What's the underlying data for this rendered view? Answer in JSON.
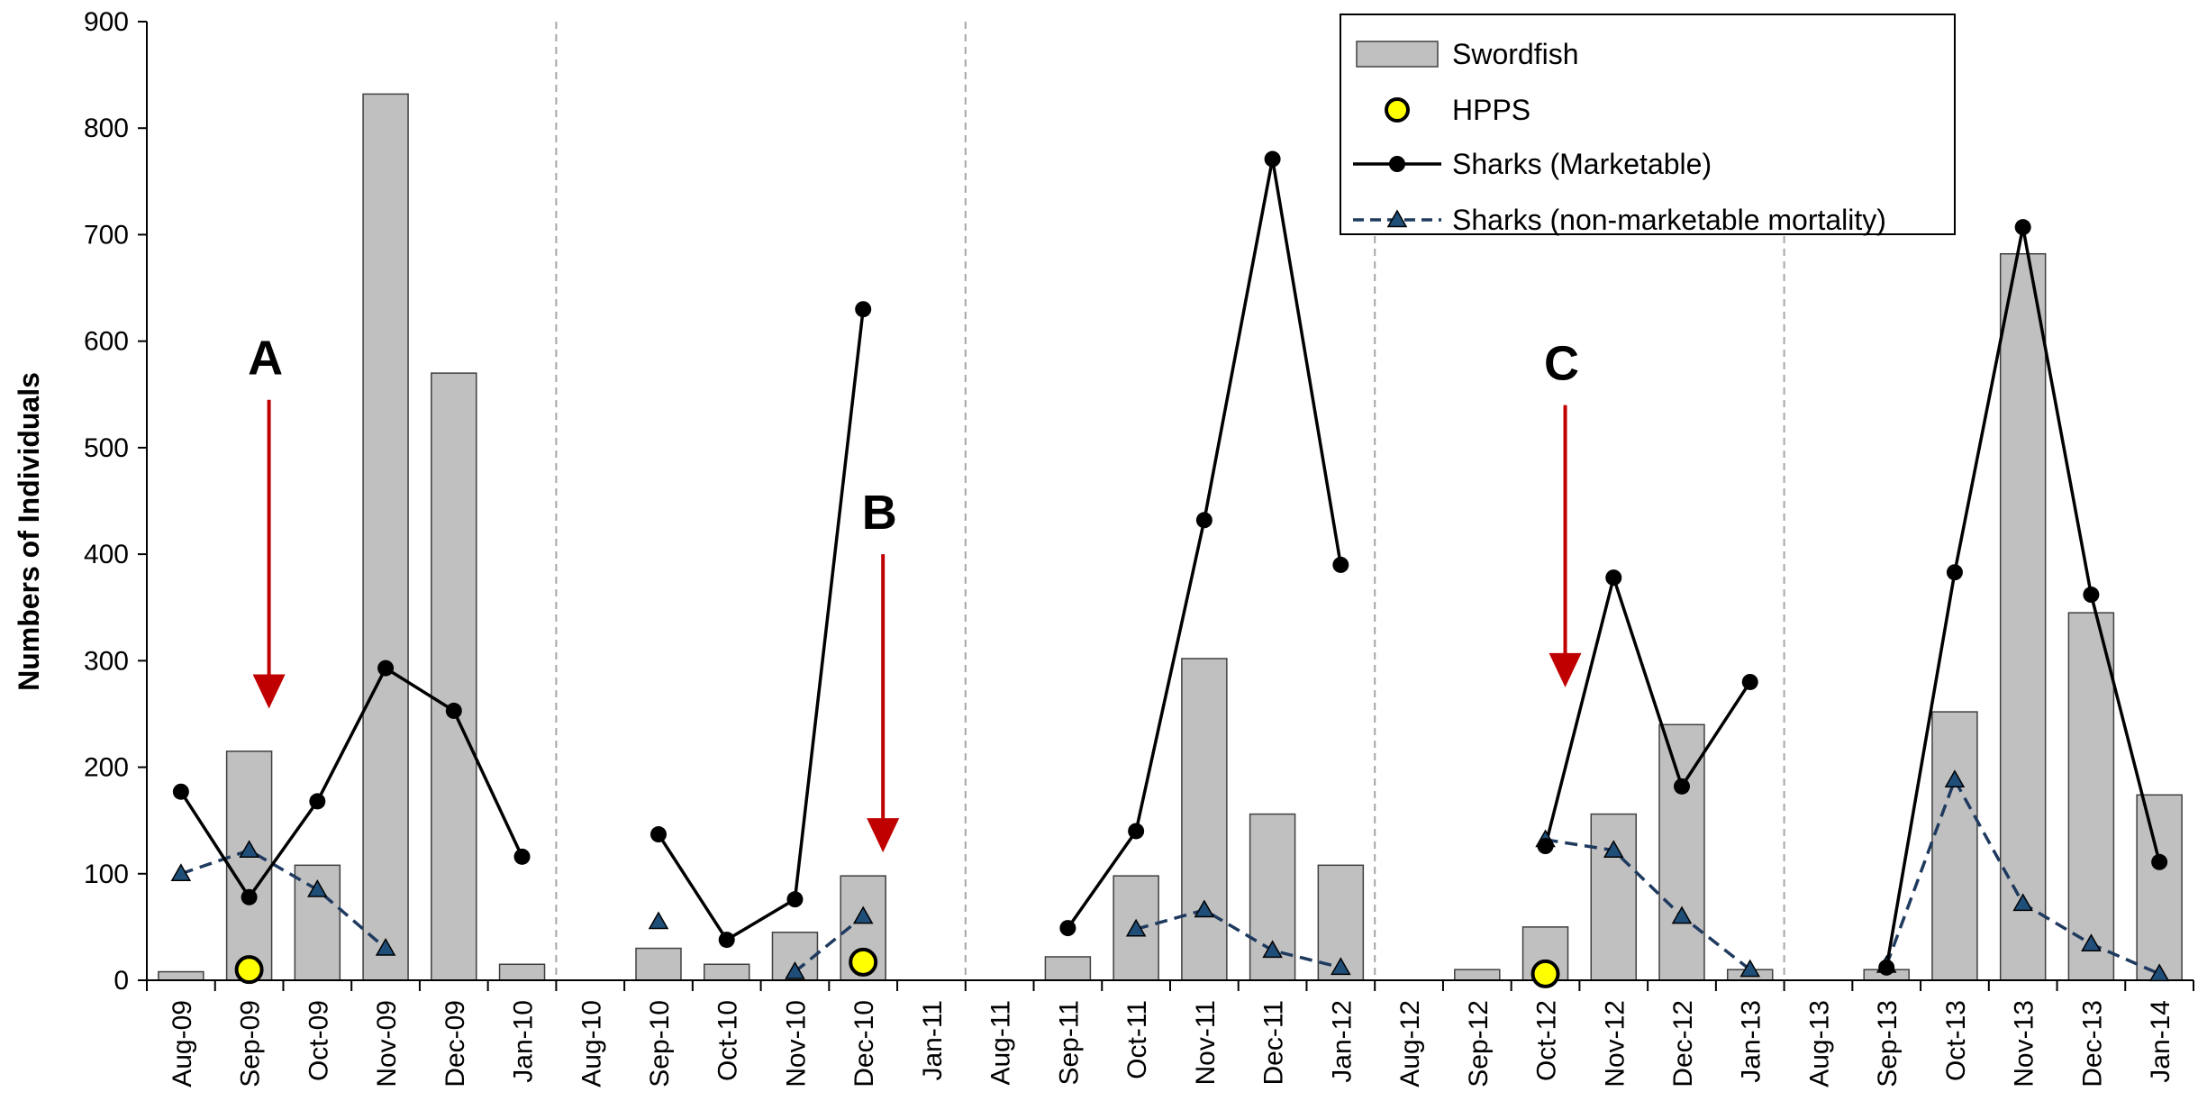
{
  "chart_data": {
    "type": "bar",
    "title": "",
    "xlabel": "",
    "ylabel": "Numbers of Individuals",
    "ylim": [
      0,
      900
    ],
    "yticks": [
      0,
      100,
      200,
      300,
      400,
      500,
      600,
      700,
      800,
      900
    ],
    "grid": false,
    "legend_position": "top-right",
    "categories": [
      "Aug-09",
      "Sep-09",
      "Oct-09",
      "Nov-09",
      "Dec-09",
      "Jan-10",
      "Aug-10",
      "Sep-10",
      "Oct-10",
      "Nov-10",
      "Dec-10",
      "Jan-11",
      "Aug-11",
      "Sep-11",
      "Oct-11",
      "Nov-11",
      "Dec-11",
      "Jan-12",
      "Aug-12",
      "Sep-12",
      "Oct-12",
      "Nov-12",
      "Dec-12",
      "Jan-13",
      "Aug-13",
      "Sep-13",
      "Oct-13",
      "Nov-13",
      "Dec-13",
      "Jan-14"
    ],
    "season_separators_after": [
      "Jan-10",
      "Jan-11",
      "Jan-12",
      "Jan-13"
    ],
    "series": [
      {
        "name": "Swordfish",
        "kind": "bar",
        "color": "#c0c0c0",
        "values": [
          8,
          215,
          108,
          832,
          570,
          15,
          null,
          30,
          15,
          45,
          98,
          null,
          null,
          22,
          98,
          302,
          156,
          108,
          null,
          10,
          50,
          156,
          240,
          10,
          null,
          10,
          252,
          682,
          345,
          174
        ]
      },
      {
        "name": "HPPS",
        "kind": "circle",
        "color": "#ffff00",
        "points": [
          {
            "x": "Sep-09",
            "y": 10
          },
          {
            "x": "Dec-10",
            "y": 17
          },
          {
            "x": "Oct-12",
            "y": 6
          }
        ]
      },
      {
        "name": "Sharks (Marketable)",
        "kind": "line",
        "color": "#000000",
        "values": [
          177,
          78,
          168,
          293,
          253,
          116,
          null,
          137,
          38,
          76,
          630,
          null,
          null,
          49,
          140,
          432,
          771,
          390,
          null,
          null,
          126,
          378,
          182,
          280,
          null,
          12,
          383,
          707,
          362,
          111
        ]
      },
      {
        "name": "Sharks (non-marketable mortality)",
        "kind": "dashed-line",
        "color": "#1f3a5f",
        "values": [
          100,
          122,
          85,
          30,
          null,
          null,
          null,
          55,
          null,
          8,
          60,
          null,
          null,
          null,
          48,
          66,
          28,
          12,
          null,
          null,
          132,
          122,
          60,
          10,
          null,
          14,
          188,
          72,
          34,
          6
        ]
      }
    ],
    "annotations": [
      {
        "label": "A",
        "x": "Sep-09",
        "arrow_from": 545,
        "arrow_to": 255
      },
      {
        "label": "B",
        "x": "Dec-10",
        "arrow_from": 400,
        "arrow_to": 120
      },
      {
        "label": "C",
        "x": "Oct-12",
        "arrow_from": 540,
        "arrow_to": 275
      }
    ],
    "colors": {
      "bar_fill": "#c0c0c0",
      "bar_stroke": "#404040",
      "marketable": "#000000",
      "nonmarketable": "#1f3a5f",
      "nonmarketable_marker": "#1f4e79",
      "hpps_fill": "#ffff00",
      "arrow": "#c00000",
      "separator": "#a6a6a6"
    }
  }
}
